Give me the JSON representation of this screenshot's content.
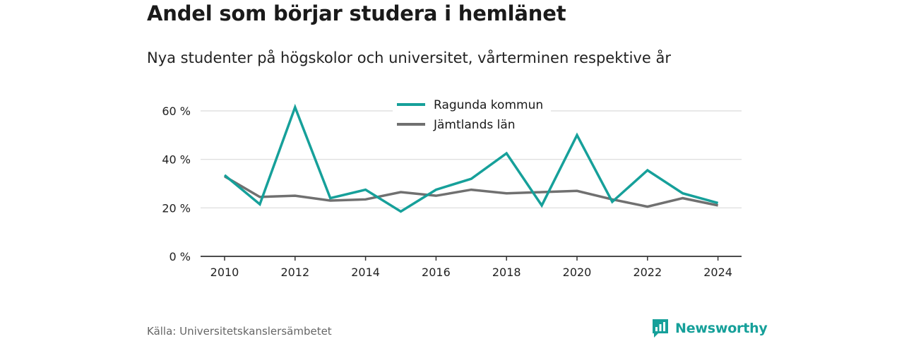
{
  "header": {
    "title": "Andel som börjar studera i hemlänet",
    "subtitle": "Nya studenter på högskolor och universitet, vårterminen respektive år"
  },
  "footer": {
    "source": "Källa: Universitetskanslersämbetet",
    "brand": "Newsworthy",
    "brand_icon": "bar-chart-icon"
  },
  "colors": {
    "ragunda": "#16a09a",
    "jamtland": "#707070",
    "grid": "#d9d9d9",
    "axis": "#333333",
    "brand": "#16a09a"
  },
  "chart_data": {
    "type": "line",
    "title": "Andel som börjar studera i hemlänet",
    "subtitle": "Nya studenter på högskolor och universitet, vårterminen respektive år",
    "x": [
      2010,
      2011,
      2012,
      2013,
      2014,
      2015,
      2016,
      2017,
      2018,
      2019,
      2020,
      2021,
      2022,
      2023,
      2024
    ],
    "x_ticks": [
      "2010",
      "2012",
      "2014",
      "2016",
      "2018",
      "2020",
      "2022",
      "2024"
    ],
    "y_ticks": [
      "0 %",
      "20 %",
      "40 %",
      "60 %"
    ],
    "ylim": [
      0,
      60
    ],
    "grid": true,
    "legend_position": "top-center",
    "series": [
      {
        "name": "Ragunda kommun",
        "values": [
          33.5,
          21.5,
          61.5,
          24,
          27.5,
          18.5,
          27.5,
          32,
          42.5,
          21,
          50,
          22.5,
          35.5,
          26,
          22
        ]
      },
      {
        "name": "Jämtlands län",
        "values": [
          33,
          24.5,
          25,
          23,
          23.5,
          26.5,
          25,
          27.5,
          26,
          26.5,
          27,
          23.5,
          20.5,
          24,
          21
        ]
      }
    ]
  }
}
